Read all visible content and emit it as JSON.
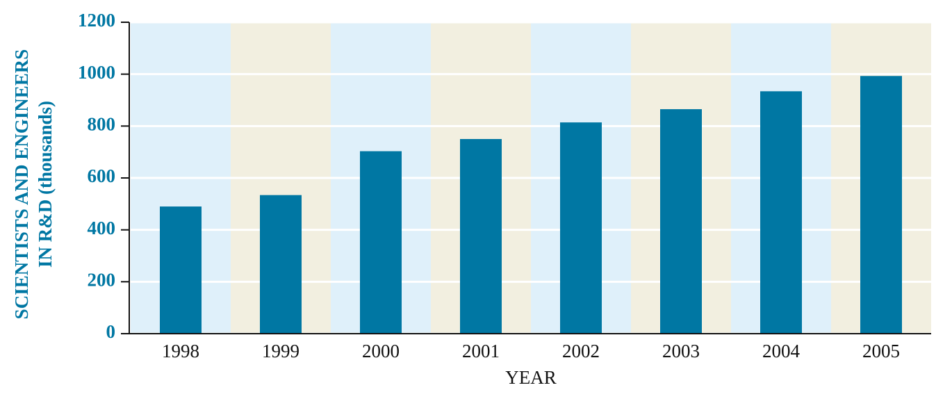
{
  "chart_data": {
    "type": "bar",
    "ylabel": [
      "SCIENTISTS AND ENGINEERS",
      "IN R&D (thousands)"
    ],
    "xlabel": "YEAR",
    "categories": [
      "1998",
      "1999",
      "2000",
      "2001",
      "2002",
      "2003",
      "2004",
      "2005"
    ],
    "values": [
      490,
      534,
      703,
      750,
      814,
      865,
      934,
      993
    ],
    "color": "#0077a3",
    "band_colors": [
      "#dff0fa",
      "#f2efe0"
    ],
    "ylim": [
      0,
      1200
    ],
    "yticks": [
      0,
      200,
      400,
      600,
      800,
      1000,
      1200
    ],
    "grid": true
  }
}
